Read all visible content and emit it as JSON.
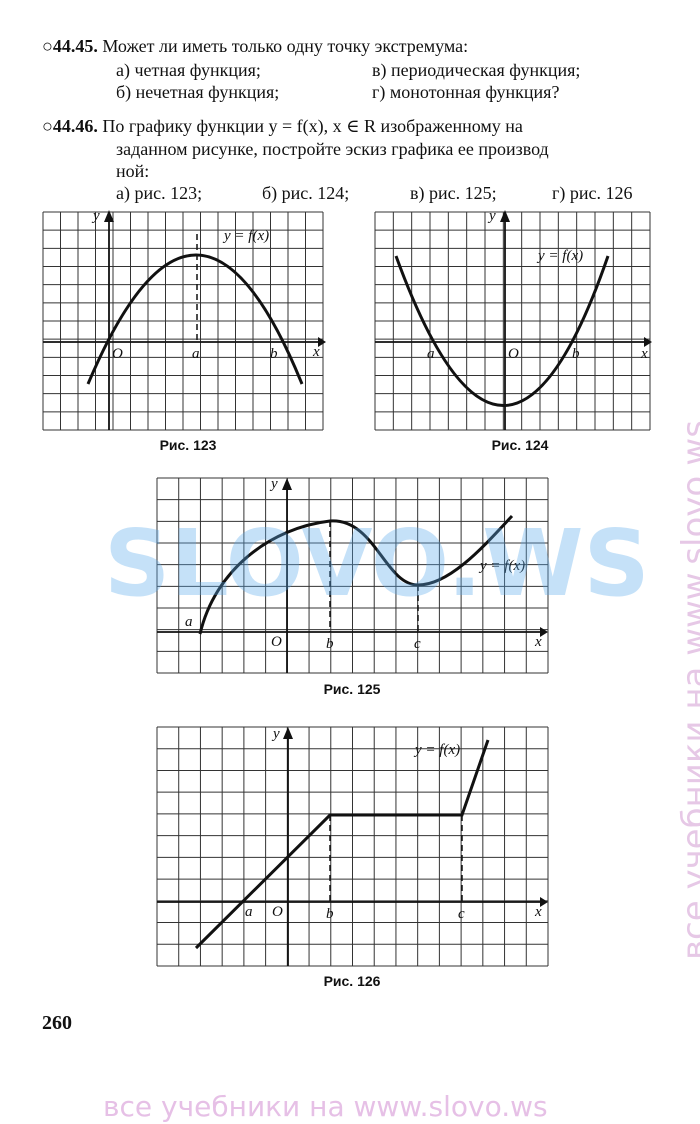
{
  "problems": [
    {
      "number": "○44.45.",
      "lines": [
        "Может ли иметь только одну точку экстремума:"
      ],
      "options": [
        "а) четная функция;",
        "в) периодическая функция;",
        "б) нечетная функция;",
        "г) монотонная функция?"
      ]
    },
    {
      "number": "○44.46.",
      "lines": [
        "По графику функции y = f(x), x ∈ R изображенному на",
        "заданном рисунке, постройте эскиз графика ее производ",
        "ной:"
      ],
      "options": [
        "а) рис. 123;",
        "б) рис. 124;",
        "в) рис. 125;",
        "г) рис. 126"
      ]
    }
  ],
  "figures": [
    {
      "caption": "Рис. 123",
      "labels": [
        "y",
        "x",
        "O",
        "a",
        "b",
        "y = f(x)"
      ]
    },
    {
      "caption": "Рис. 124",
      "labels": [
        "y",
        "x",
        "O",
        "a",
        "b",
        "y = f(x)"
      ]
    },
    {
      "caption": "Рис. 125",
      "labels": [
        "y",
        "x",
        "O",
        "a",
        "b",
        "c",
        "y = f(x)"
      ]
    },
    {
      "caption": "Рис. 126",
      "labels": [
        "y",
        "x",
        "O",
        "a",
        "b",
        "c",
        "y = f(x)"
      ]
    }
  ],
  "page_number": "260",
  "watermark_center": "SLOVO.WS",
  "watermark_side": "все учебники на www.slovo.ws",
  "watermark_bottom": "все учебники на www.slovo.ws"
}
